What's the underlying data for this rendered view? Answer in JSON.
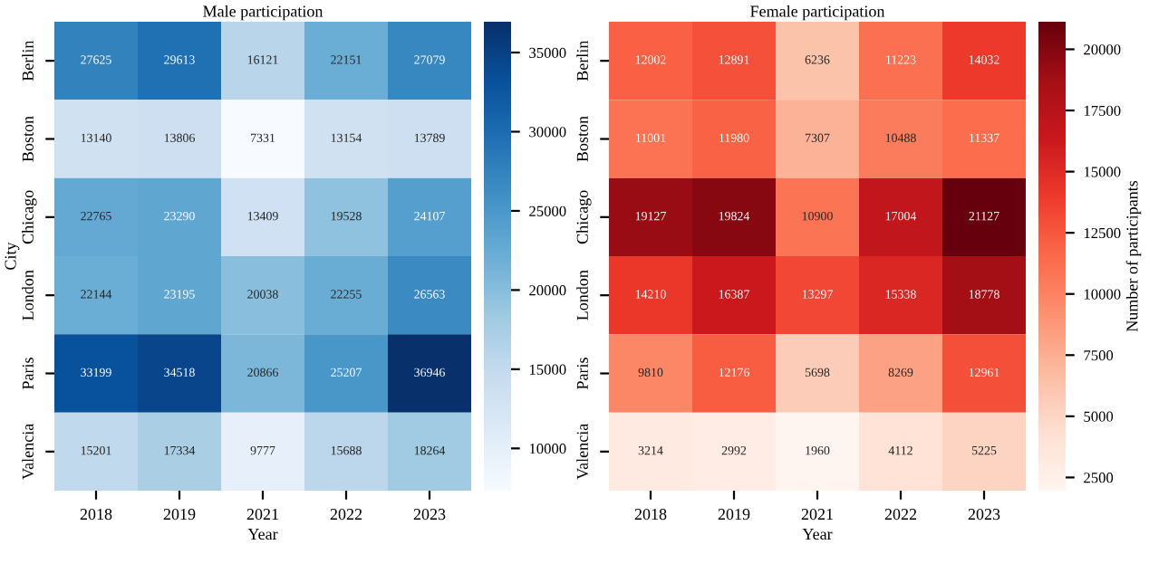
{
  "chart_data": [
    {
      "type": "heatmap",
      "title": "Male participation",
      "xlabel": "Year",
      "ylabel": "City",
      "data_labels": true,
      "categories": [
        "2018",
        "2019",
        "2021",
        "2022",
        "2023"
      ],
      "y_categories": [
        "Berlin",
        "Boston",
        "Chicago",
        "London",
        "Paris",
        "Valencia"
      ],
      "cells": [
        [
          27625,
          29613,
          16121,
          22151,
          27079
        ],
        [
          13140,
          13806,
          7331,
          13154,
          13789
        ],
        [
          22765,
          23290,
          13409,
          19528,
          24107
        ],
        [
          22144,
          23195,
          20038,
          22255,
          26563
        ],
        [
          33199,
          34518,
          20866,
          25207,
          36946
        ],
        [
          15201,
          17334,
          9777,
          15688,
          18264
        ]
      ],
      "clim": [
        7331,
        36946
      ],
      "cticks": [
        10000,
        15000,
        20000,
        25000,
        30000,
        35000
      ]
    },
    {
      "type": "heatmap",
      "title": "Female participation",
      "xlabel": "Year",
      "clabel": "Number of participants",
      "data_labels": true,
      "categories": [
        "2018",
        "2019",
        "2021",
        "2022",
        "2023"
      ],
      "y_categories": [
        "Berlin",
        "Boston",
        "Chicago",
        "London",
        "Paris",
        "Valencia"
      ],
      "cells": [
        [
          12002,
          12891,
          6236,
          11223,
          14032
        ],
        [
          11001,
          11980,
          7307,
          10488,
          11337
        ],
        [
          19127,
          19824,
          10900,
          17004,
          21127
        ],
        [
          14210,
          16387,
          13297,
          15338,
          18778
        ],
        [
          9810,
          12176,
          5698,
          8269,
          12961
        ],
        [
          3214,
          2992,
          1960,
          4112,
          5225
        ]
      ],
      "clim": [
        1960,
        21127
      ],
      "cticks": [
        2500,
        5000,
        7500,
        10000,
        12500,
        15000,
        17500,
        20000
      ]
    }
  ]
}
